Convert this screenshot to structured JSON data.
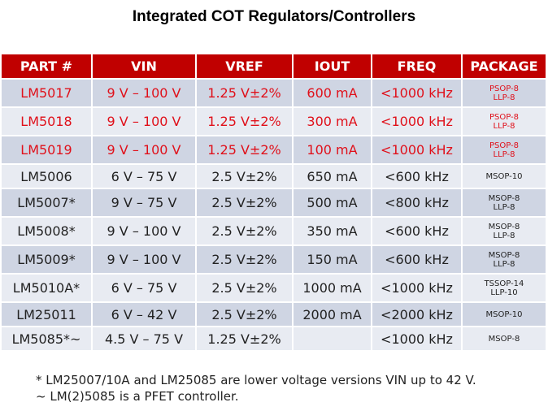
{
  "title": "Integrated COT Regulators/Controllers",
  "headers": [
    "PART #",
    "VIN",
    "VREF",
    "IOUT",
    "FREQ",
    "PACKAGE"
  ],
  "rows": [
    {
      "part": "LM5017",
      "vin": "9 V – 100 V",
      "vref": "1.25 V±2%",
      "iout": "600 mA",
      "freq": "<1000 kHz",
      "pkg1": "PSOP-8",
      "pkg2": "LLP-8",
      "highlight": true
    },
    {
      "part": "LM5018",
      "vin": "9 V – 100 V",
      "vref": "1.25 V±2%",
      "iout": "300 mA",
      "freq": "<1000 kHz",
      "pkg1": "PSOP-8",
      "pkg2": "LLP-8",
      "highlight": true
    },
    {
      "part": "LM5019",
      "vin": "9 V – 100 V",
      "vref": "1.25 V±2%",
      "iout": "100 mA",
      "freq": "<1000 kHz",
      "pkg1": "PSOP-8",
      "pkg2": "LLP-8",
      "highlight": true
    },
    {
      "part": "LM5006",
      "vin": "6 V – 75 V",
      "vref": "2.5 V±2%",
      "iout": "650 mA",
      "freq": "<600 kHz",
      "pkg1": "MSOP-10",
      "pkg2": "",
      "highlight": false
    },
    {
      "part": "LM5007*",
      "vin": "9 V – 75 V",
      "vref": "2.5 V±2%",
      "iout": "500 mA",
      "freq": "<800 kHz",
      "pkg1": "MSOP-8",
      "pkg2": "LLP-8",
      "highlight": false
    },
    {
      "part": "LM5008*",
      "vin": "9 V – 100 V",
      "vref": "2.5 V±2%",
      "iout": "350 mA",
      "freq": "<600 kHz",
      "pkg1": "MSOP-8",
      "pkg2": "LLP-8",
      "highlight": false
    },
    {
      "part": "LM5009*",
      "vin": "9 V – 100 V",
      "vref": "2.5 V±2%",
      "iout": "150 mA",
      "freq": "<600 kHz",
      "pkg1": "MSOP-8",
      "pkg2": "LLP-8",
      "highlight": false
    },
    {
      "part": "LM5010A*",
      "vin": "6 V – 75 V",
      "vref": "2.5 V±2%",
      "iout": "1000 mA",
      "freq": "<1000 kHz",
      "pkg1": "TSSOP-14",
      "pkg2": "LLP-10",
      "highlight": false
    },
    {
      "part": "LM25011",
      "vin": "6 V – 42 V",
      "vref": "2.5 V±2%",
      "iout": "2000 mA",
      "freq": "<2000 kHz",
      "pkg1": "MSOP-10",
      "pkg2": "",
      "highlight": false
    },
    {
      "part": "LM5085*~",
      "vin": "4.5 V – 75 V",
      "vref": "1.25 V±2%",
      "iout": "",
      "freq": "<1000 kHz",
      "pkg1": "MSOP-8",
      "pkg2": "",
      "highlight": false
    }
  ],
  "notes": [
    "* LM25007/10A and LM25085 are lower voltage versions VIN up to 42 V.",
    "~ LM(2)5085 is a PFET controller."
  ]
}
